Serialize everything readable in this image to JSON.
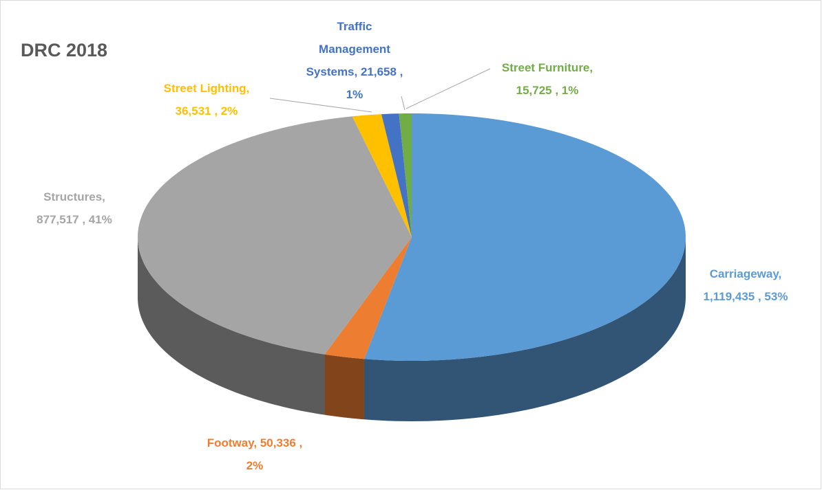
{
  "chart_data": {
    "type": "pie3d",
    "title": "DRC 2018",
    "values": [
      1119435,
      50336,
      877517,
      36531,
      21658,
      15725
    ],
    "value_labels": [
      "Carriageway,\n1,119,435 , 53%",
      "Footway,  50,336 ,\n2%",
      "Structures,\n877,517 , 41%",
      "Street Lighting,\n36,531 , 2%",
      "Traffic\nManagement\nSystems,  21,658 ,\n1%",
      "Street Furniture,\n15,725 , 1%"
    ],
    "colors": [
      "#5b9bd5",
      "#ed7d31",
      "#a5a5a5",
      "#ffc000",
      "#4472c4",
      "#70ad47"
    ]
  }
}
